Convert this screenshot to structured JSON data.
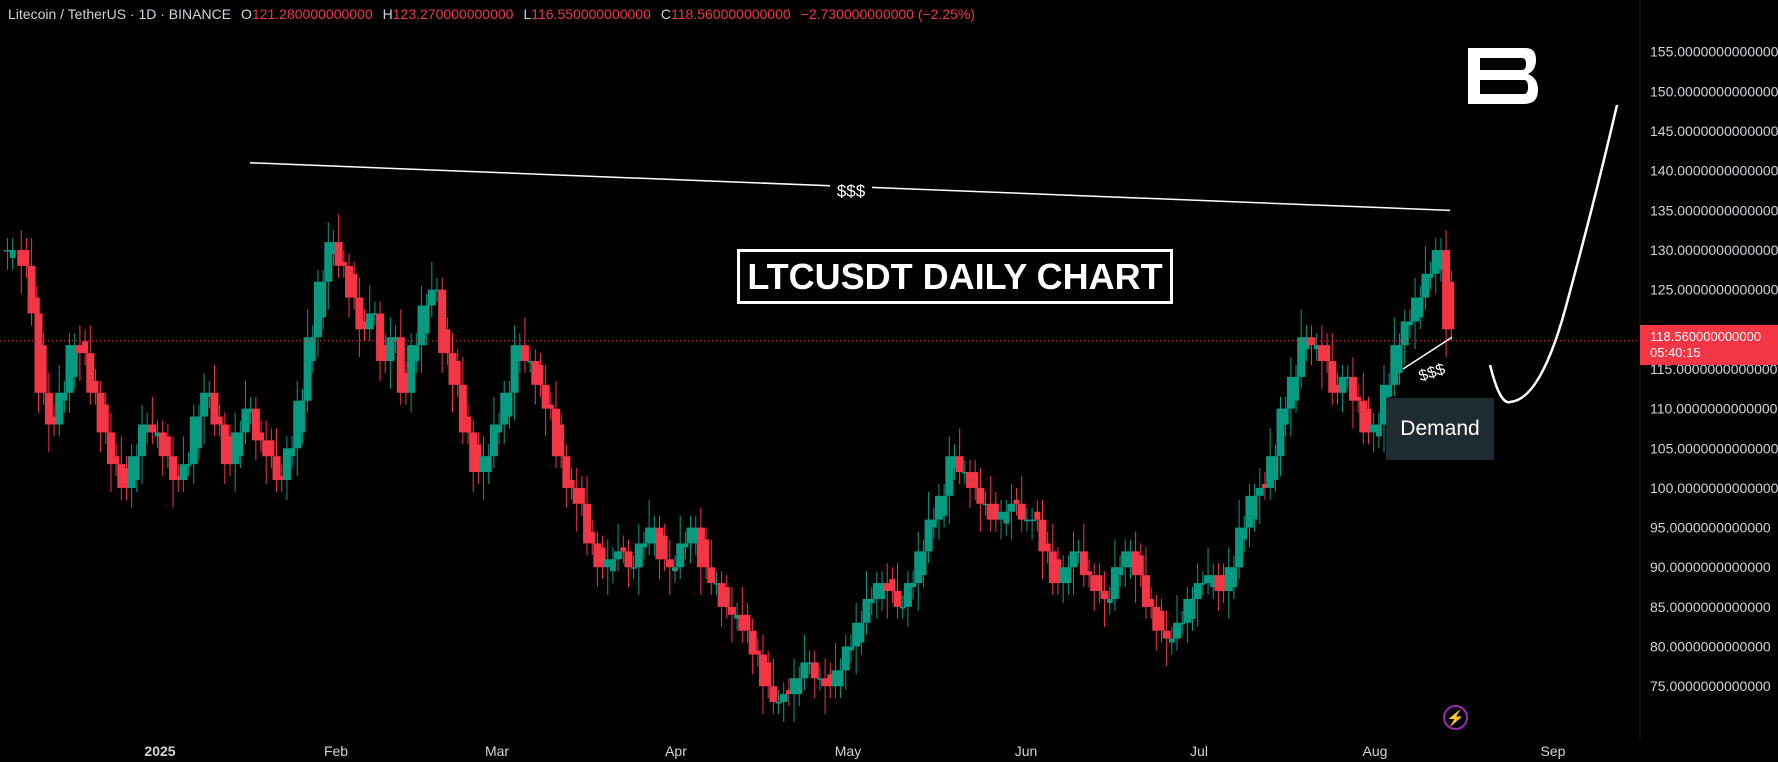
{
  "header": {
    "symbol": "Litecoin / TetherUS · 1D · BINANCE",
    "o_label": "O",
    "o_value": "121.280000000000",
    "h_label": "H",
    "h_value": "123.270000000000",
    "l_label": "L",
    "l_value": "116.550000000000",
    "c_label": "C",
    "c_value": "118.560000000000",
    "change": "−2.730000000000 (−2.25%)"
  },
  "annotations": {
    "title": "LTCUSDT DAILY CHART",
    "liquidity_top": "$$$",
    "liquidity_bottom": "$$$",
    "demand": "Demand"
  },
  "price_tag": {
    "price": "118.560000000000",
    "countdown": "05:40:15"
  },
  "colors": {
    "up": "#089981",
    "down": "#f23645",
    "background": "#000000",
    "text": "#d1d4dc"
  },
  "chart_data": {
    "type": "candlestick",
    "symbol": "LTCUSDT",
    "interval": "1D",
    "y_ticks": [
      "75.0000000000000",
      "80.0000000000000",
      "85.0000000000000",
      "90.0000000000000",
      "95.0000000000000",
      "100.0000000000000",
      "105.0000000000000",
      "110.0000000000000",
      "115.0000000000000",
      "120.0000000000000",
      "125.0000000000000",
      "130.0000000000000",
      "135.0000000000000",
      "140.0000000000000",
      "145.0000000000000",
      "150.0000000000000",
      "155.0000000000000"
    ],
    "ylim": [
      72,
      159
    ],
    "x_ticks": [
      "2025",
      "Feb",
      "Mar",
      "Apr",
      "May",
      "Jun",
      "Jul",
      "Aug",
      "Sep"
    ],
    "current_price": 118.56,
    "trendline_top": {
      "from": [
        "2025-01-17",
        141
      ],
      "to": [
        "2025-08-13",
        135
      ]
    },
    "demand_zone": [
      104,
      111
    ],
    "price_closes": [
      [
        1,
        130
      ],
      [
        5,
        128
      ],
      [
        8,
        122
      ],
      [
        10,
        112
      ],
      [
        13,
        108
      ],
      [
        16,
        112
      ],
      [
        19,
        118
      ],
      [
        22,
        117
      ],
      [
        25,
        112
      ],
      [
        28,
        107
      ],
      [
        31,
        103
      ],
      [
        34,
        100
      ],
      [
        37,
        104
      ],
      [
        40,
        108
      ],
      [
        43,
        107
      ],
      [
        46,
        104
      ],
      [
        49,
        101
      ],
      [
        52,
        103
      ],
      [
        55,
        109
      ],
      [
        58,
        112
      ],
      [
        61,
        108
      ],
      [
        64,
        103
      ],
      [
        67,
        107
      ],
      [
        70,
        110
      ],
      [
        73,
        106
      ],
      [
        76,
        104
      ],
      [
        79,
        101
      ],
      [
        82,
        105
      ],
      [
        85,
        111
      ],
      [
        88,
        119
      ],
      [
        91,
        126
      ],
      [
        94,
        131
      ],
      [
        97,
        128
      ],
      [
        100,
        124
      ],
      [
        103,
        120
      ],
      [
        106,
        122
      ],
      [
        109,
        116
      ],
      [
        112,
        119
      ],
      [
        115,
        112
      ],
      [
        118,
        118
      ],
      [
        121,
        123
      ],
      [
        124,
        125
      ],
      [
        127,
        117
      ],
      [
        130,
        113
      ],
      [
        133,
        107
      ],
      [
        136,
        102
      ],
      [
        139,
        104
      ],
      [
        142,
        108
      ],
      [
        145,
        112
      ],
      [
        148,
        118
      ],
      [
        151,
        116
      ],
      [
        154,
        113
      ],
      [
        157,
        110
      ],
      [
        160,
        104
      ],
      [
        163,
        100
      ],
      [
        166,
        98
      ],
      [
        169,
        93
      ],
      [
        172,
        90
      ],
      [
        175,
        91
      ],
      [
        178,
        92
      ],
      [
        181,
        90
      ],
      [
        184,
        93
      ],
      [
        187,
        95
      ],
      [
        190,
        91
      ],
      [
        193,
        90
      ],
      [
        196,
        93
      ],
      [
        199,
        95
      ],
      [
        202,
        90
      ],
      [
        205,
        88
      ],
      [
        208,
        85
      ],
      [
        211,
        84
      ],
      [
        214,
        82
      ],
      [
        217,
        79
      ],
      [
        220,
        75
      ],
      [
        223,
        73
      ],
      [
        226,
        74
      ],
      [
        229,
        76
      ],
      [
        232,
        78
      ],
      [
        235,
        76
      ],
      [
        238,
        75
      ],
      [
        241,
        77
      ],
      [
        244,
        80
      ],
      [
        247,
        83
      ],
      [
        250,
        86
      ],
      [
        253,
        88
      ],
      [
        256,
        87
      ],
      [
        259,
        85
      ],
      [
        262,
        88
      ],
      [
        265,
        92
      ],
      [
        268,
        96
      ],
      [
        271,
        99
      ],
      [
        274,
        104
      ],
      [
        277,
        102
      ],
      [
        280,
        100
      ],
      [
        283,
        98
      ],
      [
        286,
        96
      ],
      [
        289,
        97
      ],
      [
        292,
        98
      ],
      [
        295,
        96
      ],
      [
        298,
        96
      ],
      [
        301,
        92
      ],
      [
        304,
        88
      ],
      [
        307,
        90
      ],
      [
        310,
        92
      ],
      [
        313,
        89
      ],
      [
        316,
        87
      ],
      [
        319,
        86
      ],
      [
        322,
        90
      ],
      [
        325,
        92
      ],
      [
        328,
        89
      ],
      [
        331,
        85
      ],
      [
        334,
        82
      ],
      [
        337,
        81
      ],
      [
        340,
        83
      ],
      [
        343,
        86
      ],
      [
        346,
        88
      ],
      [
        349,
        89
      ],
      [
        352,
        87
      ],
      [
        355,
        90
      ],
      [
        358,
        95
      ],
      [
        361,
        99
      ],
      [
        364,
        100
      ],
      [
        367,
        104
      ],
      [
        370,
        110
      ],
      [
        373,
        114
      ],
      [
        376,
        119
      ],
      [
        379,
        118
      ],
      [
        382,
        116
      ],
      [
        385,
        112
      ],
      [
        388,
        114
      ],
      [
        391,
        111
      ],
      [
        394,
        107
      ],
      [
        397,
        108
      ],
      [
        400,
        113
      ],
      [
        403,
        118
      ],
      [
        406,
        121
      ],
      [
        409,
        124
      ],
      [
        412,
        127
      ],
      [
        415,
        130
      ],
      [
        418,
        120
      ]
    ]
  }
}
